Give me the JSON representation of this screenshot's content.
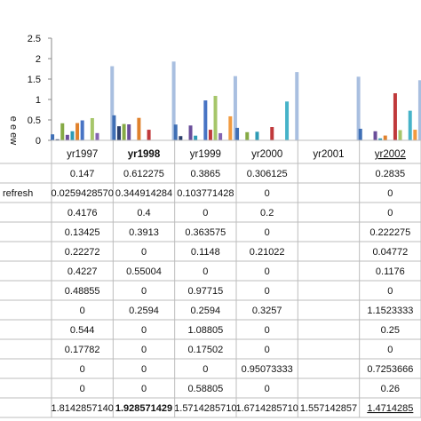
{
  "chart_data": {
    "type": "bar",
    "categories": [
      "yr1997",
      "yr1998",
      "yr1999",
      "yr2000",
      "yr2001",
      "yr2002"
    ],
    "category_styles": [
      "normal",
      "bold",
      "normal",
      "normal",
      "normal",
      "underline"
    ],
    "ylabel": "e e ew",
    "ylim": [
      0,
      2.5
    ],
    "yticks": [
      "0",
      "0.5",
      "1",
      "1.5",
      "2",
      "2.5"
    ],
    "grid": false,
    "legend": "none",
    "series": [
      {
        "label": "",
        "color": "#3f6fb5",
        "values": [
          0.147,
          0.612275,
          0.3865,
          0.306125,
          0,
          0.2835
        ]
      },
      {
        "label": "refresh",
        "color": "#2b3f6b",
        "values": [
          0.025942857,
          0.344914284,
          0.103771428,
          0,
          0,
          0
        ]
      },
      {
        "label": "",
        "color": "#86aa45",
        "values": [
          0.4176,
          0.4,
          0,
          0.2,
          0,
          0
        ]
      },
      {
        "label": "",
        "color": "#6a4e9a",
        "values": [
          0.13425,
          0.3913,
          0.363575,
          0,
          0,
          0.222275
        ]
      },
      {
        "label": "",
        "color": "#2e9bb5",
        "values": [
          0.22272,
          0,
          0.1148,
          0.21022,
          0,
          0.04772
        ]
      },
      {
        "label": "",
        "color": "#e0812c",
        "values": [
          0.4227,
          0.55004,
          0,
          0,
          0,
          0.1176
        ]
      },
      {
        "label": "",
        "color": "#4874c4",
        "values": [
          0.48855,
          0,
          0.97715,
          0,
          0,
          0
        ]
      },
      {
        "label": "",
        "color": "#c0393b",
        "values": [
          0,
          0.2594,
          0.2594,
          0.3257,
          0,
          1.152333
        ]
      },
      {
        "label": "",
        "color": "#a6c66a",
        "values": [
          0.544,
          0,
          1.08805,
          0,
          0,
          0.25
        ]
      },
      {
        "label": "",
        "color": "#8464b2",
        "values": [
          0.17782,
          0,
          0.17502,
          0,
          0,
          0
        ]
      },
      {
        "label": "",
        "color": "#46b3c9",
        "values": [
          0,
          0,
          0,
          0.95073333,
          0,
          0.725366
        ]
      },
      {
        "label": "",
        "color": "#f29a3f",
        "values": [
          0,
          0,
          0.58805,
          0,
          0,
          0.26
        ]
      },
      {
        "label": "",
        "color": "#a9bfe0",
        "values": [
          1.814285714,
          1.928571429,
          1.571428571,
          1.671428571,
          1.557142857,
          1.471428
        ]
      }
    ],
    "table": {
      "rows": [
        {
          "label": "",
          "cells": [
            "0.147",
            "0.612275",
            "0.3865",
            "0.306125",
            "",
            "0.2835"
          ]
        },
        {
          "label": "refresh",
          "cells": [
            "0.0259428570",
            "0.344914284",
            "0.103771428",
            "0",
            "",
            "0"
          ]
        },
        {
          "label": "",
          "cells": [
            "0.4176",
            "0.4",
            "0",
            "0.2",
            "",
            "0"
          ]
        },
        {
          "label": "",
          "cells": [
            "0.13425",
            "0.3913",
            "0.363575",
            "0",
            "",
            "0.222275"
          ]
        },
        {
          "label": "",
          "cells": [
            "0.22272",
            "0",
            "0.1148",
            "0.21022",
            "",
            "0.04772"
          ]
        },
        {
          "label": "",
          "cells": [
            "0.4227",
            "0.55004",
            "0",
            "0",
            "",
            "0.1176"
          ]
        },
        {
          "label": "",
          "cells": [
            "0.48855",
            "0",
            "0.97715",
            "0",
            "",
            "0"
          ]
        },
        {
          "label": "",
          "cells": [
            "0",
            "0.2594",
            "0.2594",
            "0.3257",
            "",
            "1.1523333"
          ]
        },
        {
          "label": "",
          "cells": [
            "0.544",
            "0",
            "1.08805",
            "0",
            "",
            "0.25"
          ]
        },
        {
          "label": "",
          "cells": [
            "0.17782",
            "0",
            "0.17502",
            "0",
            "",
            "0"
          ]
        },
        {
          "label": "",
          "cells": [
            "0",
            "0",
            "0",
            "0.95073333",
            "",
            "0.7253666"
          ]
        },
        {
          "label": "",
          "cells": [
            "0",
            "0",
            "0.58805",
            "0",
            "",
            "0.26"
          ]
        },
        {
          "label": "",
          "cells": [
            "1.8142857140",
            "1.928571429",
            "1.5714285710",
            "1.6714285710",
            "1.557142857",
            "1.4714285"
          ]
        }
      ],
      "bold_cells": [
        [
          12,
          1
        ]
      ],
      "underline_cells": [
        [
          12,
          5
        ]
      ]
    }
  }
}
